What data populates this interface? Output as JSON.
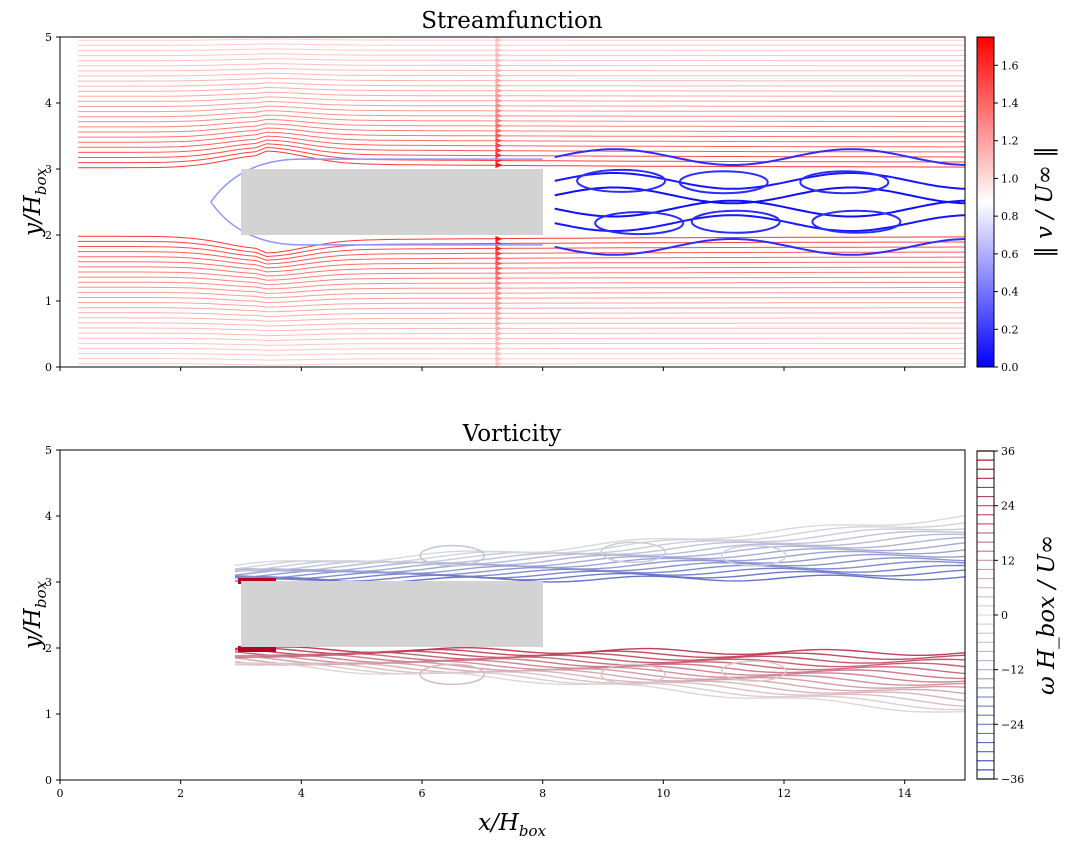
{
  "chart_data": [
    {
      "type": "streamplot",
      "title": "Streamfunction",
      "ylabel": "y/H",
      "ylabel_sub": "box",
      "xlim": [
        0,
        15
      ],
      "ylim": [
        0,
        5
      ],
      "xticks": [
        0,
        2,
        4,
        6,
        8,
        10,
        12,
        14
      ],
      "xtick_labels_shown": false,
      "yticks": [
        0,
        1,
        2,
        3,
        4,
        5
      ],
      "obstacle": {
        "x0": 3,
        "x1": 8,
        "y0": 2,
        "y1": 3,
        "color": "#d3d3d3"
      },
      "colorbar": {
        "label": "‖ v / U∞ ‖",
        "range": [
          0.0,
          1.75
        ],
        "ticks": [
          "0.0",
          "0.2",
          "0.4",
          "0.6",
          "0.8",
          "1.0",
          "1.2",
          "1.4",
          "1.6"
        ],
        "colormap": "bwr",
        "low_color": "#0000ff",
        "mid_color": "#ffffff",
        "high_color": "#ff0000"
      },
      "grid": false
    },
    {
      "type": "contour",
      "title": "Vorticity",
      "xlabel": "x/H",
      "xlabel_sub": "box",
      "ylabel": "y/H",
      "ylabel_sub": "box",
      "xlim": [
        0,
        15
      ],
      "ylim": [
        0,
        5
      ],
      "xticks": [
        0,
        2,
        4,
        6,
        8,
        10,
        12,
        14
      ],
      "yticks": [
        0,
        1,
        2,
        3,
        4,
        5
      ],
      "obstacle": {
        "x0": 3,
        "x1": 8,
        "y0": 2,
        "y1": 3,
        "color": "#d3d3d3"
      },
      "colorbar": {
        "label": "ω H_box / U∞",
        "range": [
          -36,
          36
        ],
        "ticks": [
          "−36",
          "−24",
          "−12",
          "0",
          "12",
          "24",
          "36"
        ],
        "colormap": "coolwarm",
        "low_color": "#3b4cc0",
        "mid_color": "#dddddd",
        "high_color": "#b40426"
      },
      "grid": false
    }
  ]
}
